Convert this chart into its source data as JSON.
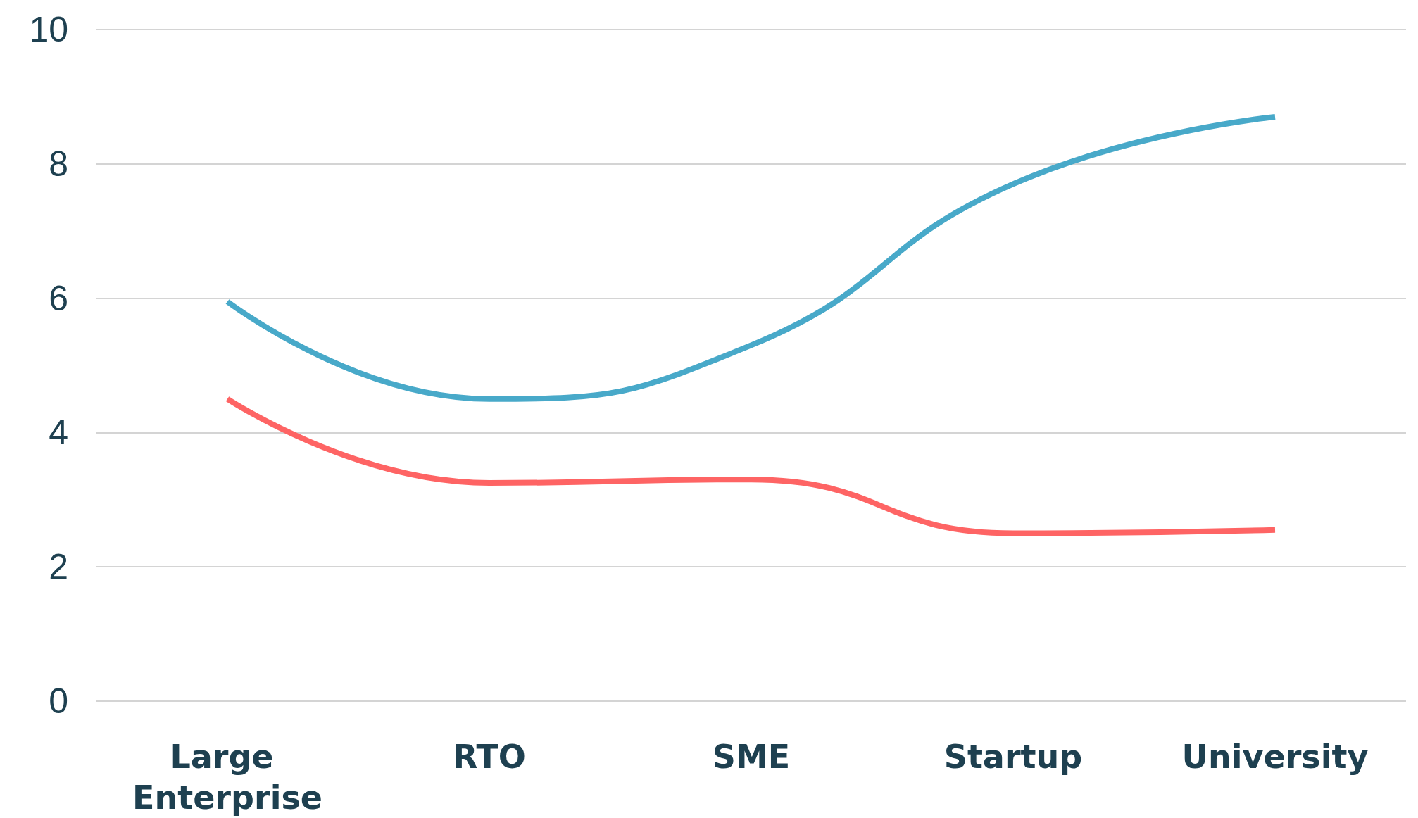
{
  "chart_data": {
    "type": "line",
    "categories": [
      "Large Enterprise",
      "RTO",
      "SME",
      "Startup",
      "University"
    ],
    "series": [
      {
        "color": "#48a9c9",
        "values": [
          5.95,
          4.5,
          5.3,
          7.7,
          8.7
        ]
      },
      {
        "color": "#fe6464",
        "values": [
          4.5,
          3.25,
          3.3,
          2.5,
          2.55
        ]
      }
    ],
    "ylim": [
      0,
      10
    ],
    "yticks": [
      0,
      2,
      4,
      6,
      8,
      10
    ],
    "grid": "y",
    "marker": "none",
    "line_style": "solid"
  }
}
